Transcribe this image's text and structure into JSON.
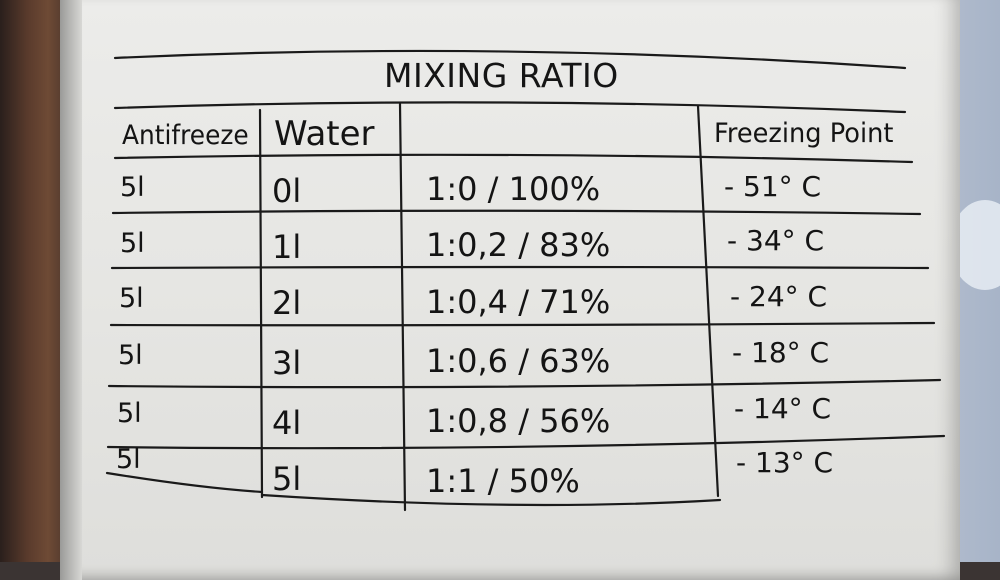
{
  "title": "MIXING RATIO",
  "headers": {
    "antifreeze": "Antifreeze",
    "water": "Water",
    "ratio": "",
    "freezing_point": "Freezing Point"
  },
  "rows": [
    {
      "antifreeze": "5l",
      "water": "0l",
      "ratio": "1:0 / 100%",
      "freezing_point": "- 51° C"
    },
    {
      "antifreeze": "5l",
      "water": "1l",
      "ratio": "1:0,2 / 83%",
      "freezing_point": "- 34° C"
    },
    {
      "antifreeze": "5l",
      "water": "2l",
      "ratio": "1:0,4 / 71%",
      "freezing_point": "- 24° C"
    },
    {
      "antifreeze": "5l",
      "water": "3l",
      "ratio": "1:0,6 / 63%",
      "freezing_point": "- 18° C"
    },
    {
      "antifreeze": "5l",
      "water": "4l",
      "ratio": "1:0,8 / 56%",
      "freezing_point": "- 14° C"
    },
    {
      "antifreeze": "5l",
      "water": "5l",
      "ratio": "1:1 / 50%",
      "freezing_point": "- 13° C"
    }
  ]
}
